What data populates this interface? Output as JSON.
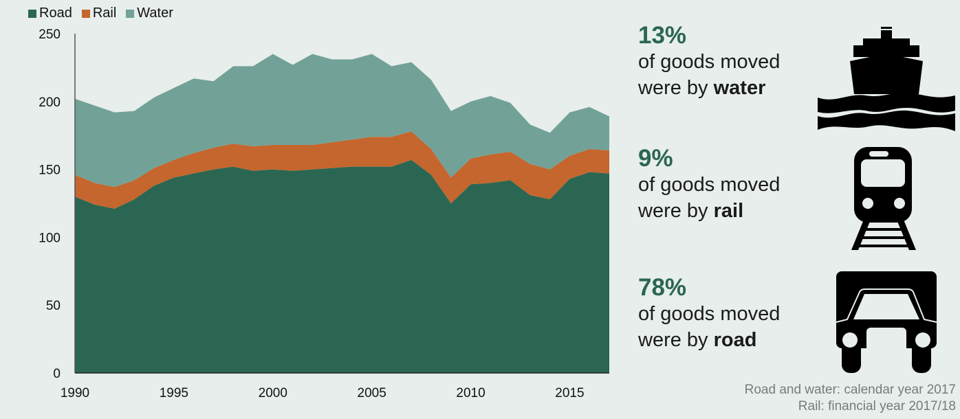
{
  "legend": [
    {
      "label": "Road",
      "color": "#2b6652"
    },
    {
      "label": "Rail",
      "color": "#c4662d"
    },
    {
      "label": "Water",
      "color": "#72a297"
    }
  ],
  "stats": [
    {
      "pct": "13%",
      "line1": "of goods moved",
      "line2_prefix": "were by ",
      "mode": "water",
      "icon": "ship-icon"
    },
    {
      "pct": "9%",
      "line1": "of goods moved",
      "line2_prefix": "were by ",
      "mode": "rail",
      "icon": "train-icon"
    },
    {
      "pct": "78%",
      "line1": "of goods moved",
      "line2_prefix": "were by ",
      "mode": "road",
      "icon": "lorry-icon"
    }
  ],
  "notes": {
    "line1": "Road and water: calendar year 2017",
    "line2": "Rail: financial year 2017/18"
  },
  "chart_data": {
    "type": "area",
    "stacked": true,
    "title": "",
    "xlabel": "",
    "ylabel": "",
    "x": [
      1990,
      1991,
      1992,
      1993,
      1994,
      1995,
      1996,
      1997,
      1998,
      1999,
      2000,
      2001,
      2002,
      2003,
      2004,
      2005,
      2006,
      2007,
      2008,
      2009,
      2010,
      2011,
      2012,
      2013,
      2014,
      2015,
      2016,
      2017
    ],
    "xlim": [
      1990,
      2017
    ],
    "ylim": [
      0,
      250
    ],
    "xticks": [
      "1990",
      "1995",
      "2000",
      "2005",
      "2010",
      "2015"
    ],
    "xtick_values": [
      1990,
      1995,
      2000,
      2005,
      2010,
      2015
    ],
    "yticks": [
      "0",
      "50",
      "100",
      "150",
      "200",
      "250"
    ],
    "ytick_values": [
      0,
      50,
      100,
      150,
      200,
      250
    ],
    "grid": false,
    "legend_position": "top-left",
    "series": [
      {
        "name": "Road",
        "color": "#2b6652",
        "values": [
          130,
          124,
          121,
          128,
          138,
          144,
          147,
          150,
          152,
          149,
          150,
          149,
          150,
          151,
          152,
          152,
          152,
          157,
          146,
          125,
          139,
          140,
          142,
          131,
          128,
          143,
          148,
          147
        ]
      },
      {
        "name": "Rail",
        "color": "#c4662d",
        "values": [
          16,
          16,
          16,
          14,
          13,
          13,
          15,
          16,
          17,
          18,
          18,
          19,
          18,
          19,
          20,
          22,
          22,
          21,
          19,
          19,
          19,
          21,
          21,
          23,
          22,
          17,
          17,
          17
        ]
      },
      {
        "name": "Water",
        "color": "#72a297",
        "values": [
          56,
          57,
          55,
          51,
          52,
          53,
          55,
          49,
          57,
          59,
          67,
          59,
          67,
          61,
          59,
          61,
          52,
          51,
          51,
          49,
          42,
          43,
          36,
          29,
          27,
          32,
          31,
          25
        ]
      }
    ]
  }
}
